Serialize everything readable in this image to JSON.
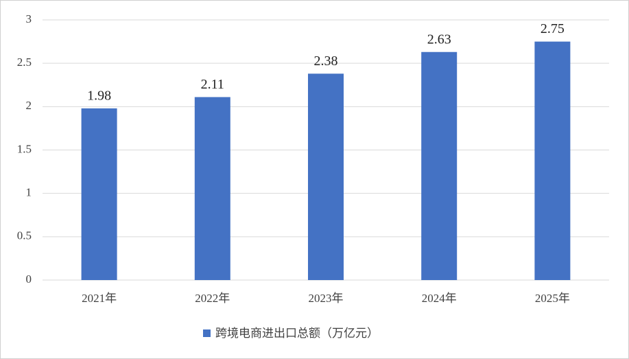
{
  "chart_data": {
    "type": "bar",
    "categories": [
      "2021年",
      "2022年",
      "2023年",
      "2024年",
      "2025年"
    ],
    "series": [
      {
        "name": "跨境电商进出口总额（万亿元）",
        "color": "#4472c4",
        "values": [
          1.98,
          2.11,
          2.38,
          2.63,
          2.75
        ]
      }
    ],
    "ylim": [
      0,
      3
    ],
    "yticks": [
      0,
      0.5,
      1,
      1.5,
      2,
      2.5,
      3
    ],
    "grid": true,
    "legend": "bottom"
  }
}
